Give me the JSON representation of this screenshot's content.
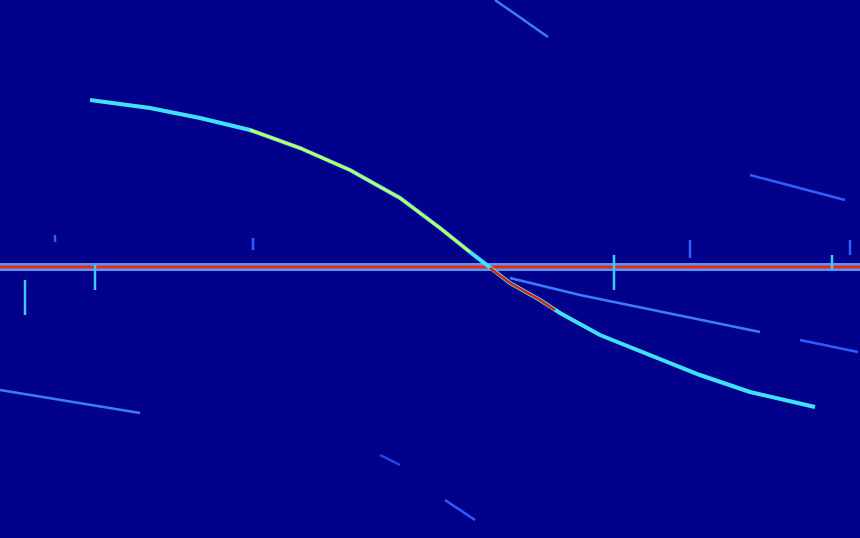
{
  "chart_data": {
    "type": "line",
    "xlim": [
      0,
      860
    ],
    "ylim": [
      538,
      0
    ],
    "tick_labels": false,
    "grid": false,
    "series": [
      {
        "color": "#4a9cff",
        "x": [
          0,
          860
        ],
        "values": [
          267,
          267
        ]
      },
      {
        "color": "#ff2200",
        "x": [
          0,
          860
        ],
        "values": [
          267,
          267
        ]
      },
      {
        "color": "#40e0ff",
        "x": [
          90,
          150,
          200,
          250,
          300,
          350,
          400,
          440,
          470,
          490,
          510,
          540,
          560,
          600,
          650,
          700,
          750,
          815
        ],
        "values": [
          100,
          108,
          118,
          130,
          148,
          170,
          198,
          228,
          252,
          268,
          283,
          300,
          313,
          335,
          355,
          375,
          392,
          407
        ]
      },
      {
        "color": "#c8ff50",
        "x": [
          250,
          300,
          350,
          400,
          440,
          470
        ],
        "values": [
          130,
          148,
          170,
          198,
          228,
          252
        ]
      },
      {
        "color": "#e02000",
        "x": [
          490,
          510,
          540,
          555
        ],
        "values": [
          268,
          283,
          300,
          310
        ]
      },
      {
        "color": "#3a7cff",
        "x": [
          510,
          580,
          760
        ],
        "values": [
          278,
          295,
          332
        ]
      },
      {
        "color": "#2f5cff",
        "x": [
          800,
          858
        ],
        "values": [
          340,
          352
        ]
      },
      {
        "color": "#3a7cff",
        "x": [
          495,
          548
        ],
        "values": [
          0,
          37
        ]
      },
      {
        "color": "#2f5cff",
        "x": [
          750,
          845
        ],
        "values": [
          175,
          200
        ]
      },
      {
        "color": "#3a7cff",
        "x": [
          0,
          140
        ],
        "values": [
          390,
          413
        ]
      },
      {
        "color": "#2448ee",
        "x": [
          380,
          400
        ],
        "values": [
          455,
          465
        ]
      },
      {
        "color": "#2f5cff",
        "x": [
          445,
          475
        ],
        "values": [
          500,
          520
        ]
      },
      {
        "color": "#40c8ff",
        "x": [
          25,
          25
        ],
        "values": [
          280,
          315
        ]
      },
      {
        "color": "#40c8ff",
        "x": [
          95,
          95
        ],
        "values": [
          265,
          290
        ]
      },
      {
        "color": "#2f5cff",
        "x": [
          55,
          55
        ],
        "values": [
          235,
          242
        ]
      },
      {
        "color": "#2f5cff",
        "x": [
          253,
          253
        ],
        "values": [
          238,
          250
        ]
      },
      {
        "color": "#40c8ff",
        "x": [
          614,
          614
        ],
        "values": [
          255,
          290
        ]
      },
      {
        "color": "#2f5cff",
        "x": [
          690,
          690
        ],
        "values": [
          240,
          258
        ]
      },
      {
        "color": "#40c8ff",
        "x": [
          832,
          832
        ],
        "values": [
          255,
          270
        ]
      },
      {
        "color": "#2f5cff",
        "x": [
          850,
          850
        ],
        "values": [
          240,
          255
        ]
      }
    ]
  }
}
